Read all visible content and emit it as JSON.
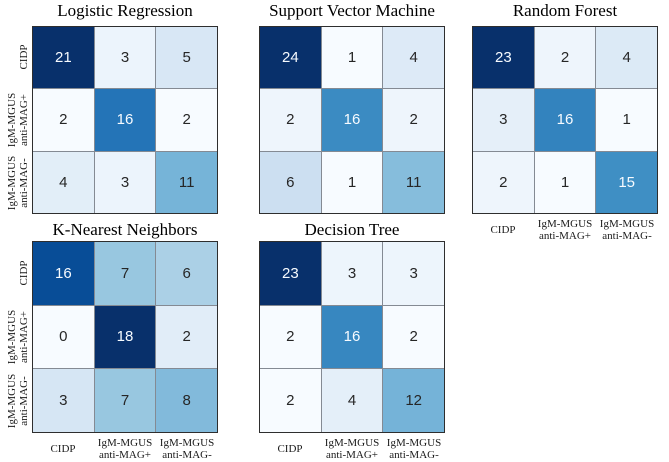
{
  "figure": {
    "background": "#ffffff",
    "description": "Confusion matrices for five classifiers"
  },
  "style": {
    "colormap": "Blues",
    "blues_stops": [
      "#f7fbff",
      "#deebf7",
      "#c6dbef",
      "#9ecae1",
      "#6baed6",
      "#4292c6",
      "#2171b5",
      "#08519c",
      "#08306b"
    ],
    "outer_border": "#2e2e2e",
    "grid_line": "#848a93",
    "title_color": "#000000",
    "tick_color": "#1a1a1a",
    "cell_text_dark": "#262626",
    "cell_text_light": "#f7fbff"
  },
  "classes": [
    {
      "label": "CIDP",
      "lines": [
        "CIDP"
      ]
    },
    {
      "label": "IgM-MGUS anti-MAG+",
      "lines": [
        "IgM-MGUS",
        "anti-MAG+"
      ]
    },
    {
      "label": "IgM-MGUS anti-MAG-",
      "lines": [
        "IgM-MGUS",
        "anti-MAG-"
      ]
    }
  ],
  "chart_data": [
    {
      "type": "heatmap",
      "title": "Logistic Regression",
      "categories": [
        "CIDP",
        "IgM-MGUS anti-MAG+",
        "IgM-MGUS anti-MAG-"
      ],
      "matrix": [
        [
          21,
          3,
          5
        ],
        [
          2,
          16,
          2
        ],
        [
          4,
          3,
          11
        ]
      ],
      "colormap": "Blues",
      "value_range": [
        2,
        21
      ]
    },
    {
      "type": "heatmap",
      "title": "Support Vector Machine",
      "categories": [
        "CIDP",
        "IgM-MGUS anti-MAG+",
        "IgM-MGUS anti-MAG-"
      ],
      "matrix": [
        [
          24,
          1,
          4
        ],
        [
          2,
          16,
          2
        ],
        [
          6,
          1,
          11
        ]
      ],
      "colormap": "Blues",
      "value_range": [
        1,
        24
      ]
    },
    {
      "type": "heatmap",
      "title": "Random Forest",
      "categories": [
        "CIDP",
        "IgM-MGUS anti-MAG+",
        "IgM-MGUS anti-MAG-"
      ],
      "matrix": [
        [
          23,
          2,
          4
        ],
        [
          3,
          16,
          1
        ],
        [
          2,
          1,
          15
        ]
      ],
      "colormap": "Blues",
      "value_range": [
        1,
        23
      ]
    },
    {
      "type": "heatmap",
      "title": "K-Nearest Neighbors",
      "categories": [
        "CIDP",
        "IgM-MGUS anti-MAG+",
        "IgM-MGUS anti-MAG-"
      ],
      "matrix": [
        [
          16,
          7,
          6
        ],
        [
          0,
          18,
          2
        ],
        [
          3,
          7,
          8
        ]
      ],
      "colormap": "Blues",
      "value_range": [
        0,
        18
      ]
    },
    {
      "type": "heatmap",
      "title": "Decision Tree",
      "categories": [
        "CIDP",
        "IgM-MGUS anti-MAG+",
        "IgM-MGUS anti-MAG-"
      ],
      "matrix": [
        [
          23,
          3,
          3
        ],
        [
          2,
          16,
          2
        ],
        [
          2,
          4,
          12
        ]
      ],
      "colormap": "Blues",
      "value_range": [
        2,
        23
      ]
    }
  ]
}
